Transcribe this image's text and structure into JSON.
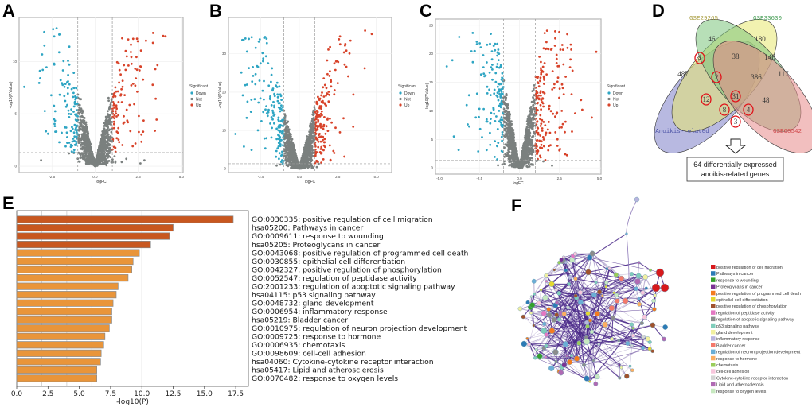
{
  "panels": {
    "A": "A",
    "B": "B",
    "C": "C",
    "D": "D",
    "E": "E",
    "F": "F"
  },
  "colors": {
    "down": "#2ea5c3",
    "not": "#7b807f",
    "up": "#d8432a",
    "bar_dark": "#c8571f",
    "bar_light": "#e9953a"
  },
  "chart_data": [
    {
      "id": "A",
      "type": "scatter",
      "xlabel": "logFC",
      "ylabel": "-log10(P.Value)",
      "xlim": [
        -4.4,
        5.1
      ],
      "ylim": [
        -0.6,
        14.2
      ],
      "xticks": [
        "-2.5",
        "0.0",
        "2.5",
        "5.0"
      ],
      "xtick_values": [
        -2.5,
        0,
        2.5,
        5
      ],
      "yticks": [
        "0",
        "5",
        "10"
      ],
      "ytick_values": [
        0,
        5,
        10
      ],
      "logfc_threshold": 1,
      "p_threshold_line": 1.3,
      "legend": {
        "title": "Significant",
        "items": [
          "Down",
          "Not",
          "Up"
        ]
      },
      "grid": true,
      "legend_position": "right"
    },
    {
      "id": "B",
      "type": "scatter",
      "xlabel": "logFC",
      "ylabel": "-log10(P.Value)",
      "xlim": [
        -4.6,
        6.0
      ],
      "ylim": [
        -1,
        39.5
      ],
      "xticks": [
        "-2.5",
        "0.0",
        "2.5",
        "5.0"
      ],
      "xtick_values": [
        -2.5,
        0,
        2.5,
        5
      ],
      "yticks": [
        "0",
        "10",
        "20",
        "30"
      ],
      "ytick_values": [
        0,
        10,
        20,
        30
      ],
      "logfc_threshold": 1,
      "p_threshold_line": 1.3,
      "legend": {
        "title": "Significant",
        "items": [
          "Down",
          "Not",
          "Up"
        ]
      },
      "grid": true,
      "legend_position": "right"
    },
    {
      "id": "C",
      "type": "scatter",
      "xlabel": "logFC",
      "ylabel": "-log10(P.Value)",
      "xlim": [
        -5.25,
        5.1
      ],
      "ylim": [
        -1.1,
        26.1
      ],
      "xticks": [
        "-5.0",
        "-2.5",
        "0.0",
        "2.5",
        "5.0"
      ],
      "xtick_values": [
        -5,
        -2.5,
        0,
        2.5,
        5
      ],
      "yticks": [
        "0",
        "5",
        "10",
        "15",
        "20",
        "25"
      ],
      "ytick_values": [
        0,
        5,
        10,
        15,
        20,
        25
      ],
      "logfc_threshold": 1,
      "p_threshold_line": 1.3,
      "legend": {
        "title": "Significant",
        "items": [
          "Down",
          "Not",
          "Up"
        ]
      },
      "grid": true,
      "legend_position": "right"
    },
    {
      "id": "D",
      "type": "venn",
      "sets": [
        "GSE29265",
        "GSE33630",
        "Anoikis-related",
        "GSE60542"
      ],
      "set_colors": [
        "#e8e870",
        "#7cc47c",
        "#7d7fc8",
        "#e88a8a"
      ],
      "regions": [
        {
          "label": "GSE29265 only",
          "value": 46
        },
        {
          "label": "GSE33630 only",
          "value": 180
        },
        {
          "label": "Anoikis-related ∩ GSE29265",
          "value": 4,
          "highlighted": true
        },
        {
          "label": "GSE29265 ∩ GSE33630",
          "value": 38
        },
        {
          "label": "GSE33630 ∩ GSE60542",
          "value": 146
        },
        {
          "label": "Anoikis-related only",
          "value": 487
        },
        {
          "label": "Anoikis ∩ GSE29265 ∩ GSE33630",
          "value": 2,
          "highlighted": true
        },
        {
          "label": "GSE29265 ∩ GSE33630 ∩ GSE60542",
          "value": 386
        },
        {
          "label": "GSE60542 only",
          "value": 117
        },
        {
          "label": "Anoikis ∩ GSE33630",
          "value": 12,
          "highlighted": true
        },
        {
          "label": "all four",
          "value": 31,
          "highlighted": true
        },
        {
          "label": "GSE29265 ∩ GSE60542",
          "value": 48
        },
        {
          "label": "Anoikis ∩ GSE33630 ∩ GSE60542",
          "value": 8,
          "highlighted": true
        },
        {
          "label": "Anoikis ∩ GSE29265 ∩ GSE60542",
          "value": 4,
          "highlighted": true
        },
        {
          "label": "Anoikis ∩ GSE60542",
          "value": 3,
          "highlighted": true
        }
      ],
      "result_box": [
        "64 differentially expressed",
        "anoikis-related genes"
      ]
    },
    {
      "id": "E",
      "type": "bar",
      "orientation": "horizontal",
      "xlabel": "-log10(P)",
      "xlim": [
        0,
        18.2
      ],
      "xticks": [
        "0.0",
        "2.5",
        "5.0",
        "7.5",
        "10.0",
        "12.5",
        "15.0",
        "17.5"
      ],
      "xtick_values": [
        0,
        2.5,
        5,
        7.5,
        10,
        12.5,
        15,
        17.5
      ],
      "categories": [
        "GO:0030335: positive regulation of cell migration",
        "hsa05200: Pathways in cancer",
        "GO:0009611: response to wounding",
        "hsa05205: Proteoglycans in cancer",
        "GO:0043068: positive regulation of programmed cell death",
        "GO:0030855: epithelial cell differentiation",
        "GO:0042327: positive regulation of phosphorylation",
        "GO:0052547: regulation of peptidase activity",
        "GO:2001233: regulation of apoptotic signaling pathway",
        "hsa04115: p53 signaling pathway",
        "GO:0048732: gland development",
        "GO:0006954: inflammatory response",
        "hsa05219: Bladder cancer",
        "GO:0010975: regulation of neuron projection development",
        "GO:0009725: response to hormone",
        "GO:0006935: chemotaxis",
        "GO:0098609: cell-cell adhesion",
        "hsa04060: Cytokine-cytokine receptor interaction",
        "hsa05417: Lipid and atherosclerosis",
        "GO:0070482: response to oxygen levels"
      ],
      "values": [
        17.3,
        12.5,
        12.2,
        10.7,
        9.8,
        9.3,
        9.2,
        8.9,
        8.1,
        7.95,
        7.7,
        7.6,
        7.6,
        7.4,
        7.05,
        6.95,
        6.75,
        6.7,
        6.4,
        6.4
      ],
      "grid": true
    },
    {
      "id": "F",
      "type": "network",
      "legend": [
        {
          "label": "positive regulation of cell migration",
          "color": "#d7191c"
        },
        {
          "label": "Pathways in cancer",
          "color": "#2c7bb6"
        },
        {
          "label": "response to wounding",
          "color": "#33a02c"
        },
        {
          "label": "Proteoglycans in cancer",
          "color": "#7b3294"
        },
        {
          "label": "positive regulation of programmed cell death",
          "color": "#f47b20"
        },
        {
          "label": "epithelial cell differentiation",
          "color": "#e5d830"
        },
        {
          "label": "positive regulation of phosphorylation",
          "color": "#a0522d"
        },
        {
          "label": "regulation of peptidase activity",
          "color": "#e377c2"
        },
        {
          "label": "regulation of apoptotic signaling pathway",
          "color": "#8c8c8c"
        },
        {
          "label": "p53 signaling pathway",
          "color": "#7fcdbb"
        },
        {
          "label": "gland development",
          "color": "#f2f0a0"
        },
        {
          "label": "inflammatory response",
          "color": "#b8b4de"
        },
        {
          "label": "Bladder cancer",
          "color": "#f4796b"
        },
        {
          "label": "regulation of neuron projection development",
          "color": "#6aaed6"
        },
        {
          "label": "response to hormone",
          "color": "#fdae61"
        },
        {
          "label": "chemotaxis",
          "color": "#9acd5a"
        },
        {
          "label": "cell-cell adhesion",
          "color": "#f7c6dc"
        },
        {
          "label": "Cytokine-cytokine receptor interaction",
          "color": "#d4d4d4"
        },
        {
          "label": "Lipid and atherosclerosis",
          "color": "#b06ab3"
        },
        {
          "label": "response to oxygen levels",
          "color": "#c7e9c0"
        }
      ]
    }
  ]
}
